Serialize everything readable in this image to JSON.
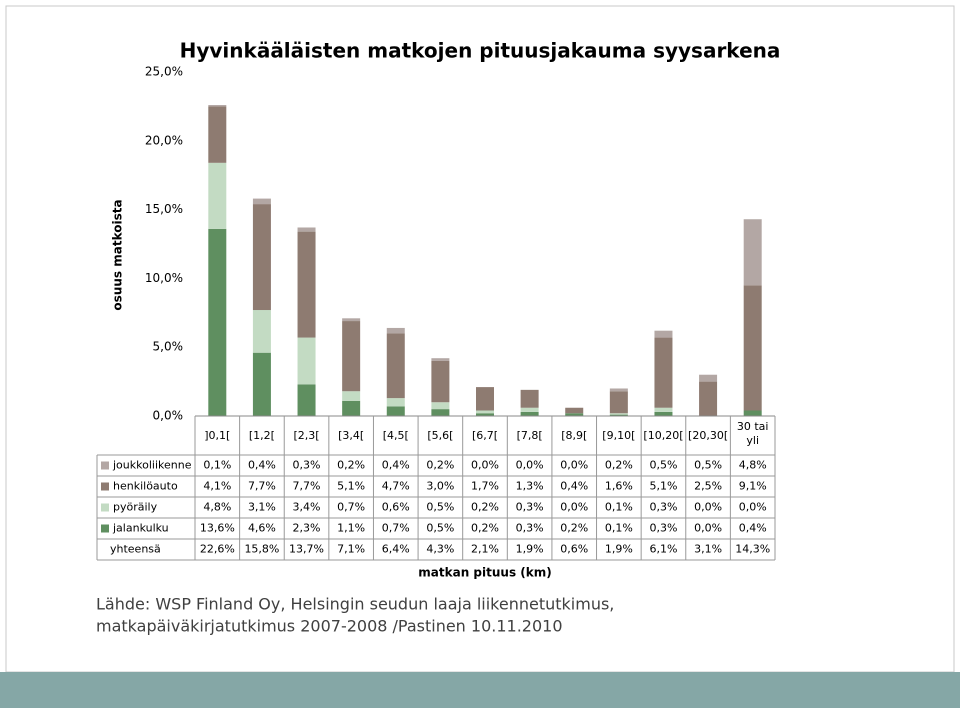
{
  "chart_data": {
    "type": "stacked_bar",
    "title": "Hyvinkääläisten matkojen pituusjakauma syysarkena",
    "y_label": "osuus matkoista",
    "x_label": "matkan pituus (km)",
    "categories": [
      "]0,1[",
      "[1,2[",
      "[2,3[",
      "[3,4[",
      "[4,5[",
      "[5,6[",
      "[6,7[",
      "[7,8[",
      "[8,9[",
      "[9,10[",
      "[10,20[",
      "[20,30[",
      "30 tai yli"
    ],
    "series": [
      {
        "name": "joukkoliikenne",
        "color": "#b3a7a4",
        "values": [
          0.1,
          0.4,
          0.3,
          0.2,
          0.4,
          0.2,
          0.0,
          0.0,
          0.0,
          0.2,
          0.5,
          0.5,
          4.8
        ],
        "value_labels": [
          "0,1%",
          "0,4%",
          "0,3%",
          "0,2%",
          "0,4%",
          "0,2%",
          "0,0%",
          "0,0%",
          "0,0%",
          "0,2%",
          "0,5%",
          "0,5%",
          "4,8%"
        ]
      },
      {
        "name": "henkilöauto",
        "color": "#8e7b71",
        "values": [
          4.1,
          7.7,
          7.7,
          5.1,
          4.7,
          3.0,
          1.7,
          1.3,
          0.4,
          1.6,
          5.1,
          2.5,
          9.1
        ],
        "value_labels": [
          "4,1%",
          "7,7%",
          "7,7%",
          "5,1%",
          "4,7%",
          "3,0%",
          "1,7%",
          "1,3%",
          "0,4%",
          "1,6%",
          "5,1%",
          "2,5%",
          "9,1%"
        ]
      },
      {
        "name": "pyöräily",
        "color": "#c3dbc3",
        "values": [
          4.8,
          3.1,
          3.4,
          0.7,
          0.6,
          0.5,
          0.2,
          0.3,
          0.0,
          0.1,
          0.3,
          0.0,
          0.0
        ],
        "value_labels": [
          "4,8%",
          "3,1%",
          "3,4%",
          "0,7%",
          "0,6%",
          "0,5%",
          "0,2%",
          "0,3%",
          "0,0%",
          "0,1%",
          "0,3%",
          "0,0%",
          "0,0%"
        ]
      },
      {
        "name": "jalankulku",
        "color": "#5f8f60",
        "values": [
          13.6,
          4.6,
          2.3,
          1.1,
          0.7,
          0.5,
          0.2,
          0.3,
          0.2,
          0.1,
          0.3,
          0.0,
          0.4
        ],
        "value_labels": [
          "13,6%",
          "4,6%",
          "2,3%",
          "1,1%",
          "0,7%",
          "0,5%",
          "0,2%",
          "0,3%",
          "0,2%",
          "0,1%",
          "0,3%",
          "0,0%",
          "0,4%"
        ]
      }
    ],
    "totals": {
      "name": "yhteensä",
      "values": [
        22.6,
        15.8,
        13.7,
        7.1,
        6.4,
        4.3,
        2.1,
        1.9,
        0.6,
        1.9,
        6.1,
        3.1,
        14.3
      ],
      "value_labels": [
        "22,6%",
        "15,8%",
        "13,7%",
        "7,1%",
        "6,4%",
        "4,3%",
        "2,1%",
        "1,9%",
        "0,6%",
        "1,9%",
        "6,1%",
        "3,1%",
        "14,3%"
      ]
    },
    "ylim": [
      0,
      25
    ],
    "yticks": [
      {
        "value": 0,
        "label": "0,0%"
      },
      {
        "value": 5,
        "label": "5,0%"
      },
      {
        "value": 10,
        "label": "10,0%"
      },
      {
        "value": 15,
        "label": "15,0%"
      },
      {
        "value": 20,
        "label": "20,0%"
      },
      {
        "value": 25,
        "label": "25,0%"
      }
    ],
    "grid": false
  },
  "source": [
    "Lähde: WSP Finland Oy, Helsingin seudun laaja liikennetutkimus,",
    "matkapäiväkirjatutkimus 2007-2008 /Pastinen 10.11.2010"
  ]
}
